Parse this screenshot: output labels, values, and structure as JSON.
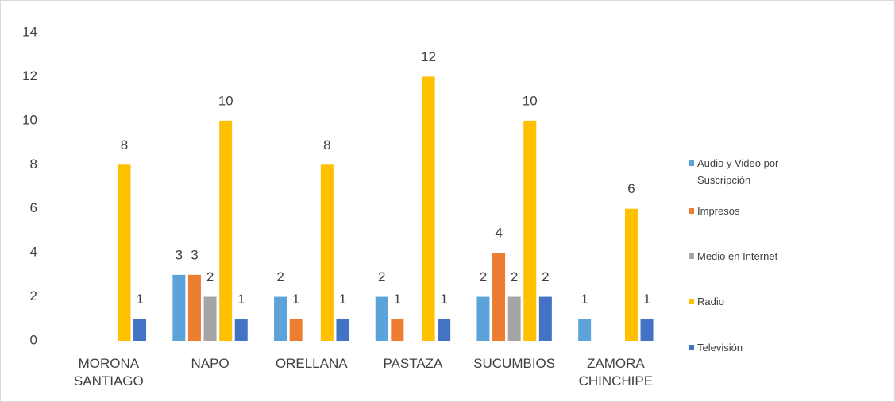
{
  "chart_data": {
    "type": "bar",
    "categories": [
      "MORONA SANTIAGO",
      "NAPO",
      "ORELLANA",
      "PASTAZA",
      "SUCUMBIOS",
      "ZAMORA CHINCHIPE"
    ],
    "series": [
      {
        "name": "Audio y Video por Suscripción",
        "color": "#5ba3d9",
        "values": [
          null,
          3,
          2,
          2,
          2,
          1
        ]
      },
      {
        "name": "Impresos",
        "color": "#ed7d31",
        "values": [
          null,
          3,
          1,
          1,
          4,
          null
        ]
      },
      {
        "name": "Medio en Internet",
        "color": "#a5a5a5",
        "values": [
          null,
          2,
          null,
          null,
          2,
          null
        ]
      },
      {
        "name": "Radio",
        "color": "#ffc000",
        "values": [
          8,
          10,
          8,
          12,
          10,
          6
        ]
      },
      {
        "name": "Televisión",
        "color": "#4472c4",
        "values": [
          1,
          1,
          1,
          1,
          2,
          1
        ]
      }
    ],
    "ylim": [
      0,
      14
    ],
    "yticks": [
      0,
      2,
      4,
      6,
      8,
      10,
      12,
      14
    ],
    "grid": false,
    "legend": "right"
  }
}
